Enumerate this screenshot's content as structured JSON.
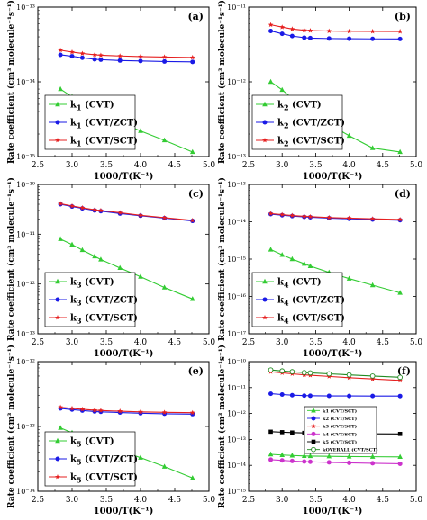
{
  "figure": {
    "ylabel": "Rate coefficient (cm³ molecule⁻¹s⁻¹)",
    "xlabel": "1000/T(K⁻¹)"
  },
  "chart_data": [
    {
      "type": "line",
      "panel_label": "(a)",
      "xlabel": "1000/T(K⁻¹)",
      "ylabel": "Rate coefficient (cm³ molecule⁻¹s⁻¹)",
      "xlim": [
        2.5,
        5.0
      ],
      "xticks": [
        "2.5",
        "3.0",
        "3.5",
        "4.0",
        "4.5",
        "5.0"
      ],
      "ylog": true,
      "ylim_exp": [
        -15,
        -13
      ],
      "legend": {
        "position": "bottom-left",
        "entries": [
          "k",
          "1",
          " (CVT)",
          "k",
          "1",
          " (CVT/ZCT)",
          "k",
          "1",
          " (CVT/SCT)"
        ]
      },
      "x": [
        2.83,
        3.0,
        3.15,
        3.33,
        3.42,
        3.7,
        4.0,
        4.35,
        4.76
      ],
      "series": [
        {
          "name": "k1 (CVT)",
          "color": "#33cc33",
          "marker": "triangle",
          "y": [
            8e-15,
            6.3e-15,
            5.2e-15,
            4.2e-15,
            3.7e-15,
            2.9e-15,
            2.2e-15,
            1.65e-15,
            1.15e-15
          ]
        },
        {
          "name": "k1 (CVT/ZCT)",
          "color": "#1a1ae6",
          "marker": "circle",
          "y": [
            2.3e-14,
            2.2e-14,
            2.1e-14,
            2e-14,
            1.98e-14,
            1.93e-14,
            1.9e-14,
            1.87e-14,
            1.85e-14
          ]
        },
        {
          "name": "k1 (CVT/SCT)",
          "color": "#e62020",
          "marker": "star",
          "y": [
            2.65e-14,
            2.5e-14,
            2.4e-14,
            2.3e-14,
            2.27e-14,
            2.22e-14,
            2.18e-14,
            2.15e-14,
            2.12e-14
          ]
        }
      ]
    },
    {
      "type": "line",
      "panel_label": "(b)",
      "xlim": [
        2.5,
        5.0
      ],
      "xticks": [
        "2.5",
        "3.0",
        "3.5",
        "4.0",
        "4.5",
        "5.0"
      ],
      "ylog": true,
      "ylim_exp": [
        -13,
        -11
      ],
      "legend": {
        "position": "bottom-left",
        "entries": [
          "k",
          "2",
          " (CVT)",
          "k",
          "2",
          " (CVT/ZCT)",
          "k",
          "2",
          " (CVT/SCT)"
        ]
      },
      "x": [
        2.83,
        3.0,
        3.15,
        3.33,
        3.42,
        3.7,
        4.0,
        4.35,
        4.76
      ],
      "series": [
        {
          "name": "k2 (CVT)",
          "color": "#33cc33",
          "marker": "triangle",
          "y": [
            1e-12,
            7.8e-13,
            6e-13,
            4.5e-13,
            3.9e-13,
            2.7e-13,
            1.9e-13,
            1.3e-13,
            1.15e-13
          ]
        },
        {
          "name": "k2 (CVT/ZCT)",
          "color": "#1a1ae6",
          "marker": "circle",
          "y": [
            4.8e-12,
            4.4e-12,
            4.1e-12,
            3.9e-12,
            3.85e-12,
            3.8e-12,
            3.78e-12,
            3.76e-12,
            3.75e-12
          ]
        },
        {
          "name": "k2 (CVT/SCT)",
          "color": "#e62020",
          "marker": "star",
          "y": [
            5.8e-12,
            5.4e-12,
            5.1e-12,
            4.9e-12,
            4.85e-12,
            4.78e-12,
            4.75e-12,
            4.73e-12,
            4.72e-12
          ]
        }
      ]
    },
    {
      "type": "line",
      "panel_label": "(c)",
      "xlim": [
        2.5,
        5.0
      ],
      "xticks": [
        "2.5",
        "3.0",
        "3.5",
        "4.0",
        "4.5",
        "5.0"
      ],
      "ylog": true,
      "ylim_exp": [
        -13,
        -10
      ],
      "legend": {
        "position": "bottom-left",
        "entries": [
          "k",
          "3",
          " (CVT)",
          "k",
          "3",
          " (CVT/ZCT)",
          "k",
          "3",
          " (CVT/SCT)"
        ]
      },
      "x": [
        2.83,
        3.0,
        3.15,
        3.33,
        3.42,
        3.7,
        4.0,
        4.35,
        4.76
      ],
      "series": [
        {
          "name": "k3 (CVT)",
          "color": "#33cc33",
          "marker": "triangle",
          "y": [
            8e-12,
            6.2e-12,
            4.8e-12,
            3.6e-12,
            3.1e-12,
            2.1e-12,
            1.4e-12,
            8.5e-13,
            5e-13
          ]
        },
        {
          "name": "k3 (CVT/ZCT)",
          "color": "#1a1ae6",
          "marker": "circle",
          "y": [
            4e-11,
            3.6e-11,
            3.3e-11,
            3e-11,
            2.9e-11,
            2.6e-11,
            2.35e-11,
            2.1e-11,
            1.85e-11
          ]
        },
        {
          "name": "k3 (CVT/SCT)",
          "color": "#e62020",
          "marker": "star",
          "y": [
            4.1e-11,
            3.7e-11,
            3.4e-11,
            3.1e-11,
            3e-11,
            2.7e-11,
            2.4e-11,
            2.15e-11,
            1.9e-11
          ]
        }
      ]
    },
    {
      "type": "line",
      "panel_label": "(d)",
      "xlim": [
        2.5,
        5.0
      ],
      "xticks": [
        "2.5",
        "3.0",
        "3.5",
        "4.0",
        "4.5",
        "5.0"
      ],
      "ylog": true,
      "ylim_exp": [
        -17,
        -13
      ],
      "legend": {
        "position": "bottom-left",
        "entries": [
          "k",
          "4",
          " (CVT)",
          "k",
          "4",
          " (CVT/ZCT)",
          "k",
          "4",
          " (CVT/SCT)"
        ]
      },
      "x": [
        2.83,
        3.0,
        3.15,
        3.33,
        3.42,
        3.7,
        4.0,
        4.35,
        4.76
      ],
      "series": [
        {
          "name": "k4 (CVT)",
          "color": "#33cc33",
          "marker": "triangle",
          "y": [
            1.8e-15,
            1.3e-15,
            1e-15,
            7.5e-16,
            6.5e-16,
            4.4e-16,
            3e-16,
            2e-16,
            1.25e-16
          ]
        },
        {
          "name": "k4 (CVT/ZCT)",
          "color": "#1a1ae6",
          "marker": "circle",
          "y": [
            1.6e-14,
            1.5e-14,
            1.42e-14,
            1.35e-14,
            1.32e-14,
            1.25e-14,
            1.2e-14,
            1.15e-14,
            1.1e-14
          ]
        },
        {
          "name": "k4 (CVT/SCT)",
          "color": "#e62020",
          "marker": "star",
          "y": [
            1.65e-14,
            1.55e-14,
            1.47e-14,
            1.4e-14,
            1.37e-14,
            1.3e-14,
            1.25e-14,
            1.2e-14,
            1.15e-14
          ]
        }
      ]
    },
    {
      "type": "line",
      "panel_label": "(e)",
      "xlim": [
        2.5,
        5.0
      ],
      "xticks": [
        "2.5",
        "3.0",
        "3.5",
        "4.0",
        "4.5",
        "5.0"
      ],
      "ylog": true,
      "ylim_exp": [
        -14,
        -12
      ],
      "legend": {
        "position": "bottom-left",
        "entries": [
          "k",
          "5",
          " (CVT)",
          "k",
          "5",
          " (CVT/ZCT)",
          "k",
          "5",
          " (CVT/SCT)"
        ]
      },
      "x": [
        2.83,
        3.0,
        3.15,
        3.33,
        3.42,
        3.7,
        4.0,
        4.35,
        4.76
      ],
      "series": [
        {
          "name": "k5 (CVT)",
          "color": "#33cc33",
          "marker": "triangle",
          "y": [
            9.5e-14,
            8e-14,
            6.9e-14,
            5.8e-14,
            5.3e-14,
            4.2e-14,
            3.3e-14,
            2.4e-14,
            1.6e-14
          ]
        },
        {
          "name": "k5 (CVT/ZCT)",
          "color": "#1a1ae6",
          "marker": "circle",
          "y": [
            1.9e-13,
            1.82e-13,
            1.76e-13,
            1.7e-13,
            1.68e-13,
            1.64e-13,
            1.6e-13,
            1.57e-13,
            1.55e-13
          ]
        },
        {
          "name": "k5 (CVT/SCT)",
          "color": "#e62020",
          "marker": "star",
          "y": [
            1.98e-13,
            1.9e-13,
            1.84e-13,
            1.78e-13,
            1.76e-13,
            1.72e-13,
            1.68e-13,
            1.65e-13,
            1.63e-13
          ]
        }
      ]
    },
    {
      "type": "line",
      "panel_label": "(f)",
      "xlim": [
        2.5,
        5.0
      ],
      "xticks": [
        "2.5",
        "3.0",
        "3.5",
        "4.0",
        "4.5",
        "5.0"
      ],
      "ylog": true,
      "ylim_exp": [
        -15,
        -10
      ],
      "legend": {
        "position": "inside-center",
        "entries": [
          "k1 (CVT/SCT)",
          "k2 (CVT/SCT)",
          "k3 (CVT/SCT)",
          "k4 (CVT/SCT)",
          "k5 (CVT/SCT)",
          "kOVERALL (CVT/SCT)"
        ]
      },
      "x": [
        2.83,
        3.0,
        3.15,
        3.33,
        3.42,
        3.7,
        4.0,
        4.35,
        4.76
      ],
      "series": [
        {
          "name": "k1 (CVT/SCT)",
          "color": "#33cc33",
          "marker": "triangle",
          "y": [
            2.65e-14,
            2.5e-14,
            2.4e-14,
            2.3e-14,
            2.27e-14,
            2.22e-14,
            2.18e-14,
            2.15e-14,
            2.12e-14
          ]
        },
        {
          "name": "k2 (CVT/SCT)",
          "color": "#1a1ae6",
          "marker": "circle",
          "y": [
            5.8e-12,
            5.4e-12,
            5.1e-12,
            4.9e-12,
            4.85e-12,
            4.78e-12,
            4.75e-12,
            4.73e-12,
            4.72e-12
          ]
        },
        {
          "name": "k3 (CVT/SCT)",
          "color": "#e62020",
          "marker": "star",
          "y": [
            4.1e-11,
            3.7e-11,
            3.4e-11,
            3.1e-11,
            3e-11,
            2.7e-11,
            2.4e-11,
            2.15e-11,
            1.9e-11
          ]
        },
        {
          "name": "k4 (CVT/SCT)",
          "color": "#cc33cc",
          "marker": "circle",
          "y": [
            1.65e-14,
            1.55e-14,
            1.47e-14,
            1.4e-14,
            1.37e-14,
            1.3e-14,
            1.25e-14,
            1.2e-14,
            1.15e-14
          ]
        },
        {
          "name": "k5 (CVT/SCT)",
          "color": "#000000",
          "marker": "square",
          "y": [
            1.98e-13,
            1.9e-13,
            1.84e-13,
            1.78e-13,
            1.76e-13,
            1.72e-13,
            1.68e-13,
            1.65e-13,
            1.63e-13
          ]
        },
        {
          "name": "kOVERALL (CVT/SCT)",
          "color": "#228B22",
          "marker": "open-circle",
          "y": [
            4.8e-11,
            4.4e-11,
            4.1e-11,
            3.8e-11,
            3.7e-11,
            3.4e-11,
            3.1e-11,
            2.8e-11,
            2.5e-11
          ]
        }
      ]
    }
  ]
}
